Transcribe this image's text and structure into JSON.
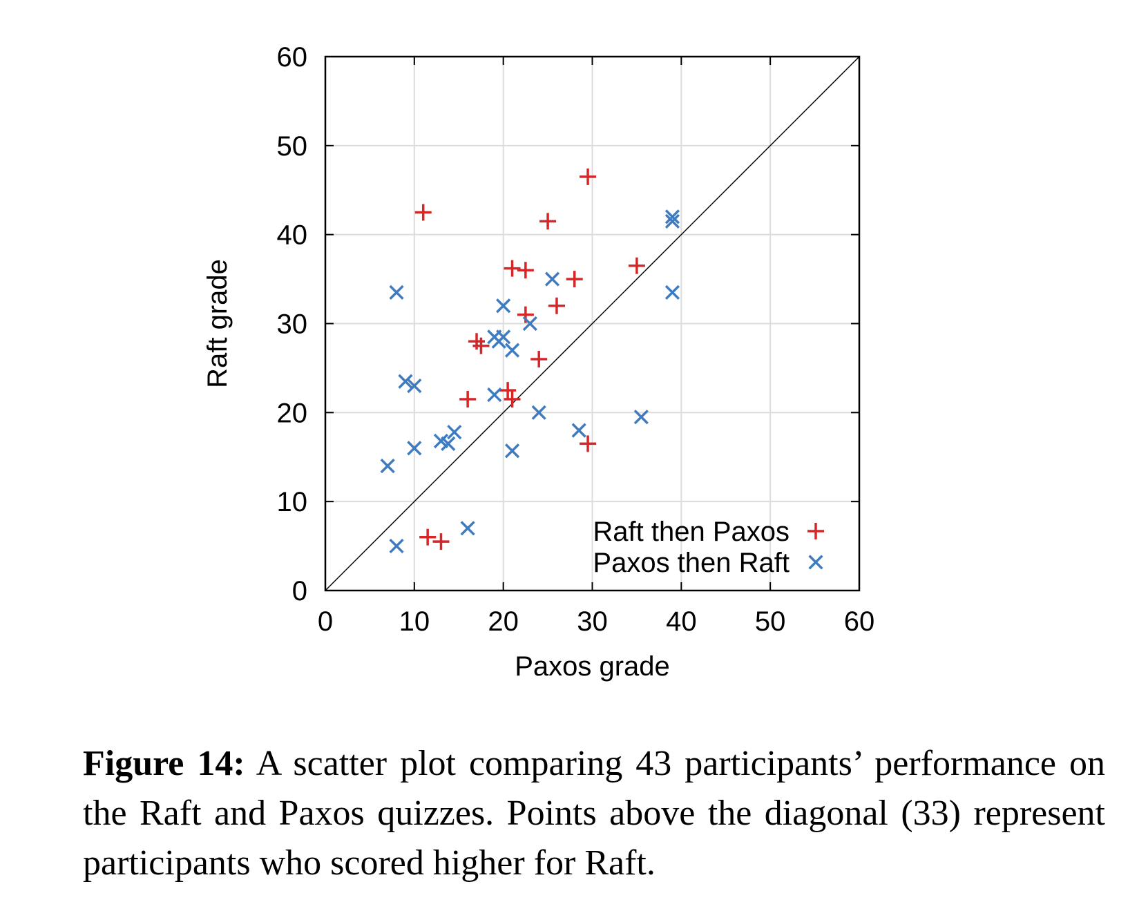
{
  "chart_data": {
    "type": "scatter",
    "xlabel": "Paxos grade",
    "ylabel": "Raft grade",
    "xlim": [
      0,
      60
    ],
    "ylim": [
      0,
      60
    ],
    "xticks": [
      "0",
      "10",
      "20",
      "30",
      "40",
      "50",
      "60"
    ],
    "yticks": [
      "0",
      "10",
      "20",
      "30",
      "40",
      "50",
      "60"
    ],
    "grid": true,
    "diagonal": true,
    "legend_position": "bottom-right",
    "series": [
      {
        "name": "Raft then Paxos",
        "marker": "plus",
        "color": "#d62728",
        "points": [
          [
            11,
            42.5
          ],
          [
            29.5,
            46.5
          ],
          [
            25,
            41.5
          ],
          [
            21,
            36.2
          ],
          [
            22.5,
            36
          ],
          [
            35,
            36.5
          ],
          [
            28,
            35
          ],
          [
            26,
            32
          ],
          [
            22.5,
            31
          ],
          [
            17,
            28
          ],
          [
            17.5,
            27.5
          ],
          [
            24,
            26
          ],
          [
            16,
            21.5
          ],
          [
            20.5,
            22.5
          ],
          [
            21,
            21.5
          ],
          [
            29.5,
            16.5
          ],
          [
            11.5,
            6
          ],
          [
            13,
            5.5
          ]
        ]
      },
      {
        "name": "Paxos then Raft",
        "marker": "x",
        "color": "#3f7bbf",
        "points": [
          [
            39,
            42
          ],
          [
            39,
            41.5
          ],
          [
            39,
            33.5
          ],
          [
            8,
            33.5
          ],
          [
            25.5,
            35
          ],
          [
            20,
            32
          ],
          [
            23,
            30
          ],
          [
            19,
            28.5
          ],
          [
            20,
            28.5
          ],
          [
            19.5,
            28
          ],
          [
            21,
            27
          ],
          [
            9,
            23.5
          ],
          [
            10,
            23
          ],
          [
            19,
            22
          ],
          [
            24,
            20
          ],
          [
            35.5,
            19.5
          ],
          [
            28.5,
            18
          ],
          [
            14.5,
            17.8
          ],
          [
            13,
            16.8
          ],
          [
            13.8,
            16.5
          ],
          [
            10,
            16
          ],
          [
            21,
            15.7
          ],
          [
            7,
            14
          ],
          [
            16,
            7
          ],
          [
            8,
            5
          ]
        ]
      }
    ]
  },
  "caption": {
    "label": "Figure 14:",
    "text": "A scatter plot comparing 43 participants’ performance on the Raft and Paxos quizzes. Points above the diagonal (33) represent participants who scored higher for Raft."
  }
}
